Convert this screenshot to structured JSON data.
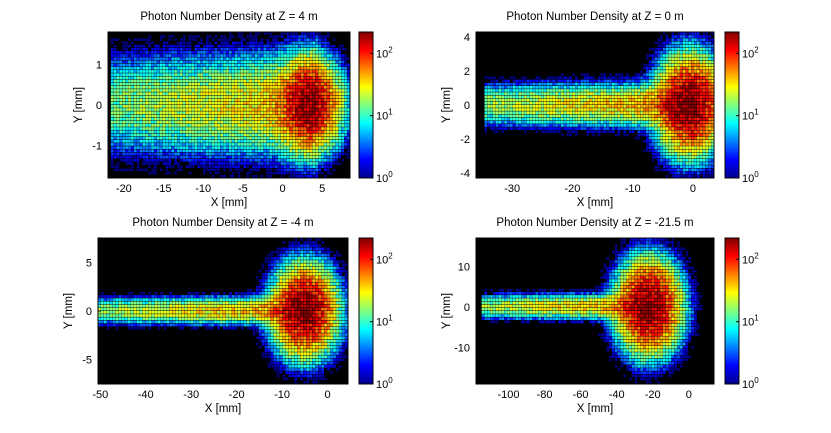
{
  "figure": {
    "colorbar_colors": [
      "#00008f",
      "#0000ff",
      "#0080ff",
      "#00ffff",
      "#80ff80",
      "#ffff00",
      "#ff8000",
      "#ff0000",
      "#800000"
    ],
    "background_color": "#000000"
  },
  "chart_data": [
    {
      "type": "heatmap",
      "title": "Photon Number Density at Z = 4 m",
      "xlabel": "X [mm]",
      "ylabel": "Y [mm]",
      "xlim": [
        -22,
        8.5
      ],
      "ylim": [
        -1.8,
        1.8
      ],
      "xticks": [
        -20,
        -15,
        -10,
        -5,
        0,
        5
      ],
      "xtick_labels": [
        "-20",
        "-15",
        "-10",
        "-5",
        "0",
        "5"
      ],
      "yticks": [
        -1,
        0,
        1
      ],
      "ytick_labels": [
        "-1",
        "0",
        "1"
      ],
      "colorbar": {
        "scale": "log",
        "range": [
          1,
          220
        ],
        "ticks": [
          1,
          10,
          100
        ],
        "tick_bases": [
          "10",
          "10",
          "10"
        ],
        "tick_exponents": [
          "0",
          "1",
          "2"
        ]
      },
      "beam": {
        "tail_start": -21.5,
        "head_x": 3.5,
        "head_halfwidth": 1.2,
        "tail_halfwidth": 0.9,
        "peak": 160
      }
    },
    {
      "type": "heatmap",
      "title": "Photon Number Density at Z = 0 m",
      "xlabel": "X [mm]",
      "ylabel": "Y [mm]",
      "xlim": [
        -36,
        3.5
      ],
      "ylim": [
        -4.3,
        4.3
      ],
      "xticks": [
        -30,
        -20,
        -10,
        0
      ],
      "xtick_labels": [
        "-30",
        "-20",
        "-10",
        "0"
      ],
      "yticks": [
        -4,
        -2,
        0,
        2,
        4
      ],
      "ytick_labels": [
        "-4",
        "-2",
        "0",
        "2",
        "4"
      ],
      "colorbar": {
        "scale": "log",
        "range": [
          1,
          220
        ],
        "ticks": [
          1,
          10,
          100
        ],
        "tick_bases": [
          "10",
          "10",
          "10"
        ],
        "tick_exponents": [
          "0",
          "1",
          "2"
        ]
      },
      "beam": {
        "tail_start": -34.5,
        "head_x": -0.5,
        "head_halfwidth": 3.0,
        "tail_halfwidth": 0.9,
        "peak": 200
      }
    },
    {
      "type": "heatmap",
      "title": "Photon Number Density at Z = -4 m",
      "xlabel": "X [mm]",
      "ylabel": "Y [mm]",
      "xlim": [
        -50.5,
        4.5
      ],
      "ylim": [
        -7.5,
        7.5
      ],
      "xticks": [
        -50,
        -40,
        -30,
        -20,
        -10,
        0
      ],
      "xtick_labels": [
        "-50",
        "-40",
        "-30",
        "-20",
        "-10",
        "0"
      ],
      "yticks": [
        -5,
        0,
        5
      ],
      "ytick_labels": [
        "-5",
        "0",
        "5"
      ],
      "colorbar": {
        "scale": "log",
        "range": [
          1,
          220
        ],
        "ticks": [
          1,
          10,
          100
        ],
        "tick_bases": [
          "10",
          "10",
          "10"
        ],
        "tick_exponents": [
          "0",
          "1",
          "2"
        ]
      },
      "beam": {
        "tail_start": -50.5,
        "head_x": -5.0,
        "head_halfwidth": 4.8,
        "tail_halfwidth": 1.0,
        "peak": 200
      }
    },
    {
      "type": "heatmap",
      "title": "Photon Number Density at Z = -21.5 m",
      "xlabel": "X [mm]",
      "ylabel": "Y [mm]",
      "xlim": [
        -118,
        14
      ],
      "ylim": [
        -19,
        17
      ],
      "xticks": [
        -100,
        -80,
        -60,
        -40,
        -20,
        0
      ],
      "xtick_labels": [
        "-100",
        "-80",
        "-60",
        "-40",
        "-20",
        "0"
      ],
      "yticks": [
        -10,
        0,
        10
      ],
      "ytick_labels": [
        "-10",
        "0",
        "10"
      ],
      "colorbar": {
        "scale": "log",
        "range": [
          1,
          220
        ],
        "ticks": [
          1,
          10,
          100
        ],
        "tick_bases": [
          "10",
          "10",
          "10"
        ],
        "tick_exponents": [
          "0",
          "1",
          "2"
        ]
      },
      "beam": {
        "tail_start": -115,
        "head_x": -22,
        "head_halfwidth": 12,
        "tail_halfwidth": 2.2,
        "peak": 200
      }
    }
  ]
}
